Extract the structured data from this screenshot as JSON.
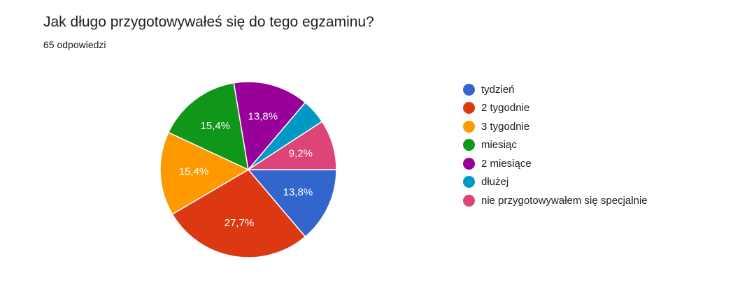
{
  "header": {
    "title": "Jak długo przygotowywałeś się do tego egzaminu?",
    "subtitle": "65 odpowiedzi"
  },
  "chart_data": {
    "type": "pie",
    "title": "Jak długo przygotowywałeś się do tego egzaminu?",
    "subtitle": "65 odpowiedzi",
    "legend_position": "right",
    "categories": [
      "tydzień",
      "2 tygodnie",
      "3 tygodnie",
      "miesiąc",
      "2 miesiące",
      "dłużej",
      "nie przygotowywałem się specjalnie"
    ],
    "values": [
      13.8,
      27.7,
      15.4,
      15.4,
      13.8,
      4.6,
      9.2
    ],
    "labels": [
      "13,8%",
      "27,7%",
      "15,4%",
      "15,4%",
      "13,8%",
      "",
      "9,2%"
    ],
    "colors": [
      "#3366cc",
      "#dc3912",
      "#ff9900",
      "#109618",
      "#990099",
      "#0099c6",
      "#dd4477"
    ],
    "start_angle_deg": 90,
    "direction": "clockwise"
  }
}
